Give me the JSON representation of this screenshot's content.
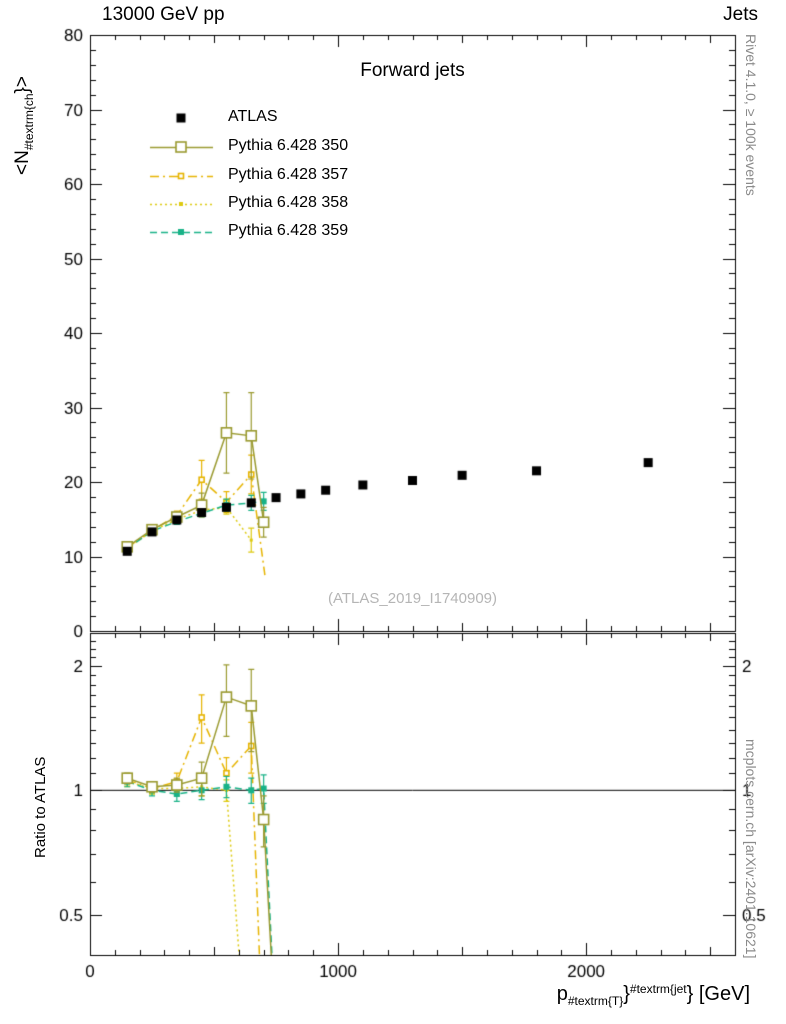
{
  "header": {
    "left_title": "13000 GeV pp",
    "right_title": "Jets"
  },
  "side_notes": {
    "right_top": "Rivet 4.1.0, ≥ 100k events",
    "right_bottom": "mcplots.cern.ch [arXiv:2401.10621]"
  },
  "main_plot": {
    "title": "Forward jets",
    "watermark": "(ATLAS_2019_I1740909)",
    "ylabel": {
      "pre": "<N",
      "sub": "#textrm{ch",
      "post": "}>"
    }
  },
  "ratio_plot": {
    "ylabel": "Ratio to ATLAS"
  },
  "xaxis_title": {
    "pre": "p",
    "sub": "#textrm{T}",
    "mid": "}",
    "sup": "#textrm{jet",
    "post": "} [GeV]"
  },
  "chart_data": {
    "type": "line",
    "title": "Forward jets",
    "xlabel": "p_T^jet [GeV]",
    "ylabel": "<N_ch>",
    "ratio_ylabel": "Ratio to ATLAS",
    "xlim": [
      0,
      2600
    ],
    "main_ylim": [
      0,
      80
    ],
    "main_y_tick_step": 10,
    "main_y_minor_step": 2,
    "ratio_ylim": [
      0.4,
      2.4
    ],
    "ratio_yscale": "log",
    "x_major_ticks": [
      0,
      1000,
      2000
    ],
    "ratio_major_ticks": [
      0.5,
      1,
      2
    ],
    "ratio_minor_ticks": [
      0.6,
      0.7,
      0.8,
      0.9,
      1.1,
      1.2,
      1.3,
      1.4,
      1.5,
      1.6,
      1.7,
      1.8,
      1.9,
      2.1,
      2.2,
      2.3
    ],
    "legend_position": "top-left-inside",
    "grid": false,
    "series": [
      {
        "name": "ATLAS",
        "kind": "data",
        "color": "#000000",
        "marker": "square-filled",
        "marker_size": 9,
        "line": null,
        "x": [
          150,
          250,
          350,
          450,
          550,
          650,
          750,
          850,
          950,
          1100,
          1300,
          1500,
          1800,
          2250
        ],
        "y": [
          10.7,
          13.3,
          14.9,
          15.9,
          16.6,
          17.2,
          17.9,
          18.4,
          18.9,
          19.6,
          20.2,
          20.9,
          21.5,
          22.6
        ],
        "yerr": [
          0.3,
          0.3,
          0.3,
          0.3,
          0.3,
          0.3,
          0.3,
          0.3,
          0.3,
          0.3,
          0.3,
          0.3,
          0.3,
          0.4
        ]
      },
      {
        "name": "Pythia 6.428 350",
        "kind": "mc",
        "color": "#9a9a30",
        "marker": "square-open",
        "marker_size": 10,
        "line": "solid",
        "x": [
          150,
          250,
          350,
          450,
          550,
          650,
          700
        ],
        "y": [
          11.3,
          13.6,
          15.3,
          16.9,
          26.6,
          26.2,
          14.6
        ],
        "yerr": [
          0.25,
          0.3,
          0.5,
          1.6,
          5.4,
          5.8,
          2.0
        ],
        "ratio": [
          1.07,
          1.02,
          1.03,
          1.07,
          1.68,
          1.6,
          0.85
        ],
        "ratio_err": [
          0.03,
          0.03,
          0.04,
          0.1,
          0.33,
          0.36,
          0.12
        ],
        "ratio_tail": [
          [
            755,
            0.22
          ]
        ]
      },
      {
        "name": "Pythia 6.428 357",
        "kind": "mc",
        "color": "#e6b400",
        "marker": "square-open-small",
        "marker_size": 5,
        "line": "dashdot",
        "x": [
          150,
          250,
          350,
          450,
          550,
          650
        ],
        "y": [
          11.2,
          13.5,
          15.5,
          20.3,
          17.3,
          21.0
        ],
        "yerr": [
          0.25,
          0.3,
          0.6,
          2.6,
          1.4,
          2.6
        ],
        "tail": [
          [
            705,
            7.5
          ]
        ],
        "ratio": [
          1.06,
          1.01,
          1.05,
          1.5,
          1.1,
          1.28
        ],
        "ratio_err": [
          0.03,
          0.03,
          0.05,
          0.2,
          0.1,
          0.18
        ],
        "ratio_tail": [
          [
            700,
            0.22
          ]
        ]
      },
      {
        "name": "Pythia 6.428 358",
        "kind": "mc",
        "color": "#ddca10",
        "marker": "dot",
        "marker_size": 3,
        "line": "dotted",
        "x": [
          150,
          250,
          350,
          450,
          550,
          650
        ],
        "y": [
          11.1,
          13.4,
          15.0,
          16.2,
          16.6,
          12.2
        ],
        "yerr": [
          0.25,
          0.3,
          0.4,
          0.6,
          0.9,
          1.6
        ],
        "ratio": [
          1.05,
          1.01,
          1.01,
          1.02,
          1.0
        ],
        "ratio_err": [
          0.03,
          0.03,
          0.04,
          0.05,
          0.06
        ],
        "ratio_tail": [
          [
            640,
            0.2
          ]
        ]
      },
      {
        "name": "Pythia 6.428 359",
        "kind": "mc",
        "color": "#18b287",
        "marker": "square-filled-small",
        "marker_size": 6,
        "line": "dashed",
        "x": [
          150,
          250,
          350,
          450,
          550,
          650,
          700
        ],
        "y": [
          11.1,
          13.4,
          14.7,
          15.8,
          16.9,
          17.2,
          17.4
        ],
        "yerr": [
          0.25,
          0.3,
          0.4,
          0.5,
          0.8,
          1.0,
          1.2
        ],
        "ratio": [
          1.05,
          1.0,
          0.98,
          1.0,
          1.02,
          1.0,
          1.01
        ],
        "ratio_err": [
          0.03,
          0.03,
          0.04,
          0.05,
          0.06,
          0.07,
          0.08
        ],
        "ratio_tail": [
          [
            755,
            0.22
          ]
        ]
      }
    ]
  }
}
